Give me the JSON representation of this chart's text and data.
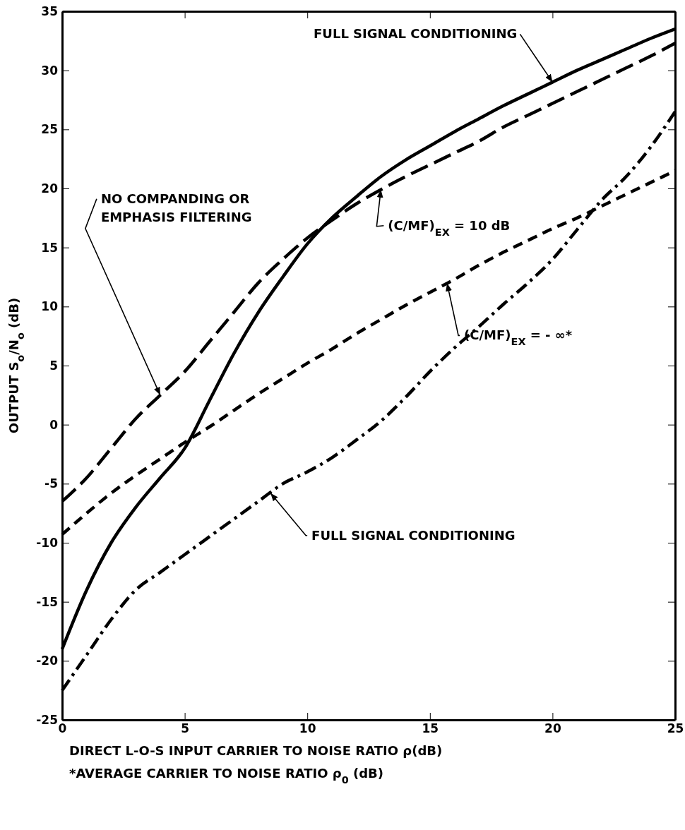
{
  "chart_data": {
    "type": "line",
    "xlabel": "DIRECT L-O-S INPUT CARRIER TO NOISE RATIO  ρ(dB)",
    "ylabel": "OUTPUT S$_{o}$/N$_{o}$ (dB)",
    "x": [
      0,
      1,
      2,
      3,
      4,
      5,
      6,
      7,
      8,
      9,
      10,
      11,
      12,
      13,
      14,
      15,
      16,
      17,
      18,
      19,
      20,
      21,
      22,
      23,
      24,
      25
    ],
    "xlim": [
      0,
      25
    ],
    "xticks": [
      0,
      5,
      10,
      15,
      20,
      25
    ],
    "ylim": [
      -25,
      35
    ],
    "yticks": [
      -25,
      -20,
      -15,
      -10,
      -5,
      0,
      5,
      10,
      15,
      20,
      25,
      30,
      35
    ],
    "grid": false,
    "marker": "none",
    "series": [
      {
        "color": "#000000",
        "line_style": "solid",
        "values": [
          -19,
          -14,
          -10,
          -7,
          -4.5,
          -2,
          2,
          6,
          9.5,
          12.5,
          15.3,
          17.5,
          19.3,
          21,
          22.4,
          23.6,
          24.8,
          25.9,
          27,
          28,
          29,
          30,
          30.9,
          31.8,
          32.7,
          33.5
        ]
      },
      {
        "color": "#000000",
        "line_style": "longdash",
        "values": [
          -6.5,
          -4.5,
          -2,
          0.5,
          2.5,
          4.5,
          7,
          9.5,
          12,
          14,
          15.8,
          17.3,
          18.7,
          19.9,
          21,
          22,
          23,
          24,
          25.2,
          26.2,
          27.2,
          28.2,
          29.2,
          30.2,
          31.2,
          32.3
        ]
      },
      {
        "color": "#000000",
        "line_style": "dashed",
        "values": [
          -9.3,
          -7.5,
          -5.8,
          -4.3,
          -2.9,
          -1.5,
          -0.2,
          1.2,
          2.6,
          3.9,
          5.2,
          6.4,
          7.7,
          8.9,
          10.1,
          11.2,
          12.3,
          13.5,
          14.6,
          15.6,
          16.6,
          17.5,
          18.5,
          19.5,
          20.5,
          21.5
        ]
      },
      {
        "color": "#000000",
        "line_style": "dashdot",
        "values": [
          -22.5,
          -19.5,
          -16.5,
          -14,
          -12.5,
          -11,
          -9.5,
          -8,
          -6.5,
          -5,
          -4,
          -2.8,
          -1.3,
          0.3,
          2.3,
          4.5,
          6.5,
          8.3,
          10.2,
          12,
          14,
          16.5,
          19,
          21,
          23.5,
          26.5
        ]
      }
    ],
    "annotations": [
      {
        "text": "FULL SIGNAL CONDITIONING",
        "x": 20,
        "y": 29
      },
      {
        "text": "NO COMPANDING OR\nEMPHASIS FILTERING",
        "x": 4,
        "y": 2.5
      },
      {
        "text": "(C/MF)$_{EX}$ = 10 dB",
        "x": 13,
        "y": 19.9
      },
      {
        "text": "(C/MF)$_{EX}$ = - ∞*",
        "x": 15.7,
        "y": 11.97
      },
      {
        "text": "FULL SIGNAL CONDITIONING",
        "x": 8.5,
        "y": -5.8
      },
      "*AVERAGE CARRIER TO NOISE RATIO  ρ$_{0}$ (dB)"
    ]
  }
}
